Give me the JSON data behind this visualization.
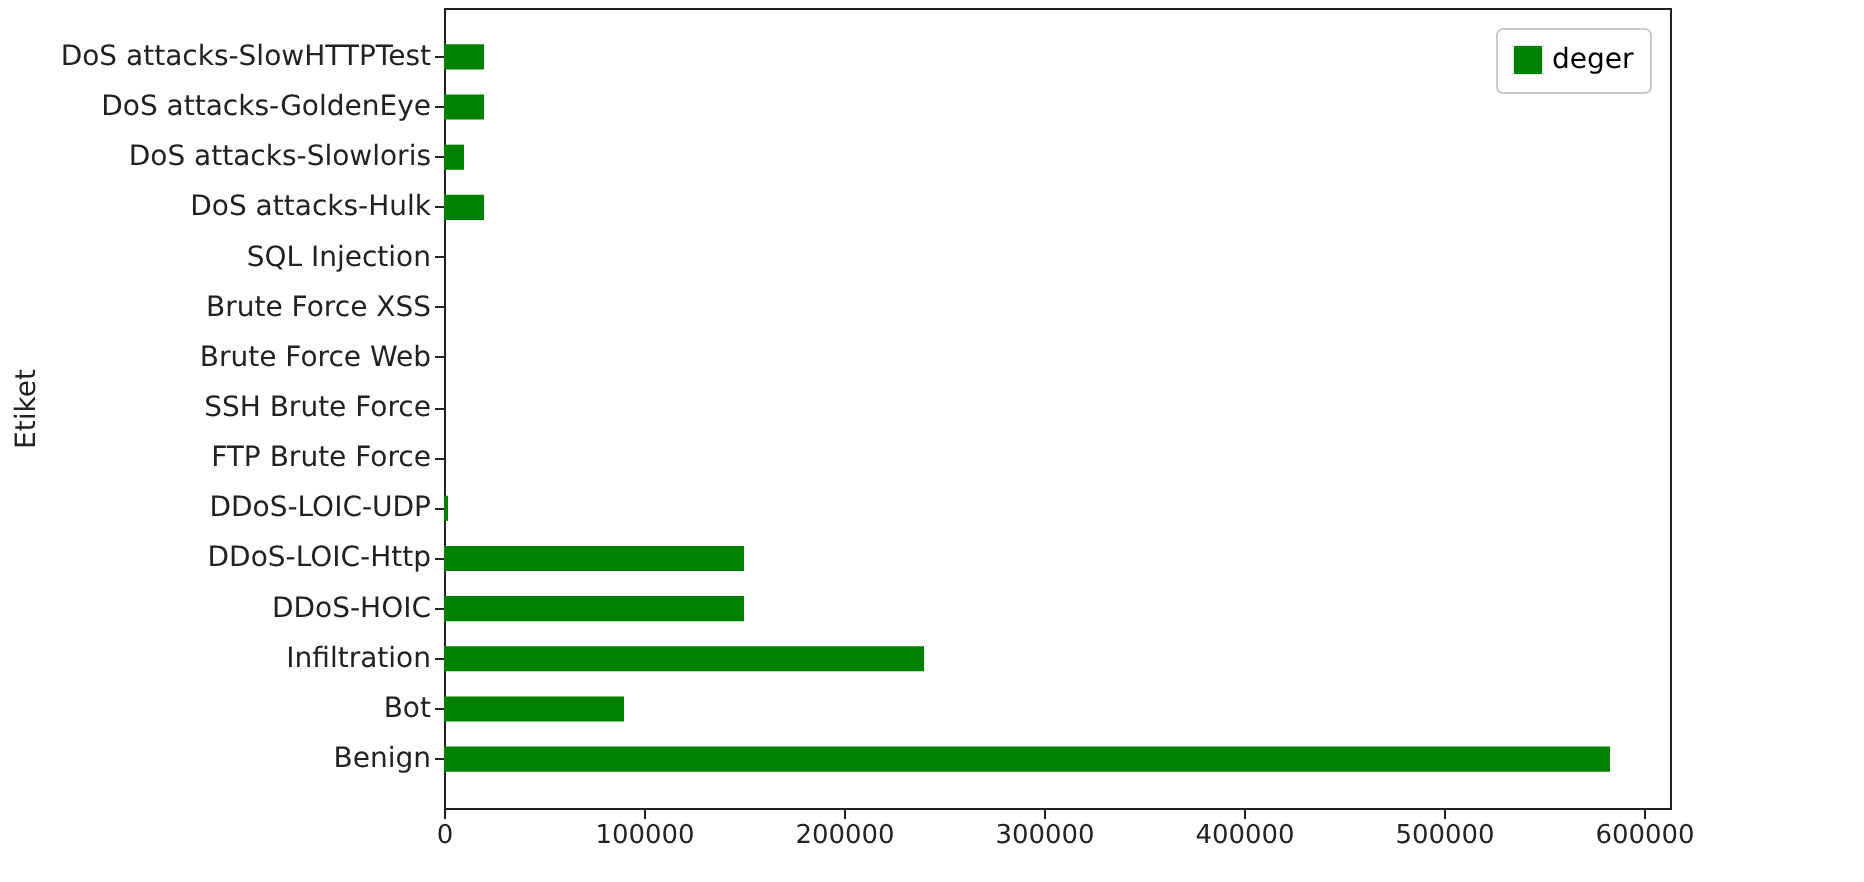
{
  "chart_data": {
    "type": "bar",
    "orientation": "horizontal",
    "ylabel": "Etiket",
    "categories": [
      "DoS attacks-SlowHTTPTest",
      "DoS attacks-GoldenEye",
      "DoS attacks-Slowloris",
      "DoS attacks-Hulk",
      "SQL Injection",
      "Brute Force XSS",
      "Brute Force Web",
      "SSH Brute Force",
      "FTP Brute Force",
      "DDoS-LOIC-UDP",
      "DDoS-LOIC-Http",
      "DDoS-HOIC",
      "Infiltration",
      "Bot",
      "Benign"
    ],
    "series": [
      {
        "name": "deger",
        "color": "#008000",
        "values": [
          20000,
          20000,
          10000,
          20000,
          0,
          0,
          0,
          0,
          0,
          2000,
          150000,
          150000,
          240000,
          90000,
          583000
        ]
      }
    ],
    "xlim": [
      0,
      613000
    ],
    "xticks": [
      0,
      100000,
      200000,
      300000,
      400000,
      500000,
      600000
    ],
    "grid": false,
    "legend": "top right"
  }
}
